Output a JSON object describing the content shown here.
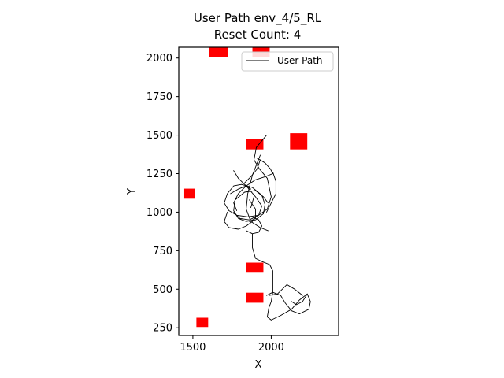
{
  "chart_data": {
    "type": "line",
    "title": "User Path env_4/5_RL",
    "subtitle": "Reset Count: 4",
    "xlabel": "X",
    "ylabel": "Y",
    "xlim": [
      1410,
      2430
    ],
    "ylim": [
      200,
      2070
    ],
    "x_ticks": [
      {
        "value": 1500,
        "label": "1500"
      },
      {
        "value": 2000,
        "label": "2000"
      }
    ],
    "y_ticks": [
      {
        "value": 250,
        "label": "250"
      },
      {
        "value": 500,
        "label": "500"
      },
      {
        "value": 750,
        "label": "750"
      },
      {
        "value": 1000,
        "label": "1000"
      },
      {
        "value": 1250,
        "label": "1250"
      },
      {
        "value": 1500,
        "label": "1500"
      },
      {
        "value": 1750,
        "label": "1750"
      },
      {
        "value": 2000,
        "label": "2000"
      }
    ],
    "grid": false,
    "legend": {
      "placement": "top-right",
      "entries": [
        "User Path"
      ]
    },
    "obstacle_color": "#ff0000",
    "line_color": "#000000",
    "obstacles": [
      {
        "cx": 1665,
        "cy": 2045,
        "w": 120,
        "h": 75
      },
      {
        "cx": 1935,
        "cy": 2045,
        "w": 110,
        "h": 75
      },
      {
        "cx": 1895,
        "cy": 1440,
        "w": 110,
        "h": 65
      },
      {
        "cx": 2175,
        "cy": 1460,
        "w": 110,
        "h": 105
      },
      {
        "cx": 1480,
        "cy": 1120,
        "w": 70,
        "h": 65
      },
      {
        "cx": 1895,
        "cy": 640,
        "w": 110,
        "h": 65
      },
      {
        "cx": 1895,
        "cy": 445,
        "w": 110,
        "h": 65
      },
      {
        "cx": 1560,
        "cy": 285,
        "w": 75,
        "h": 60
      }
    ],
    "series": [
      {
        "name": "User Path",
        "paths": [
          [
            [
              1970,
              1500
            ],
            [
              1905,
              1420
            ],
            [
              1890,
              1340
            ],
            [
              1925,
              1280
            ],
            [
              1975,
              1220
            ],
            [
              2000,
              1100
            ],
            [
              1975,
              1020
            ],
            [
              1920,
              980
            ],
            [
              1850,
              970
            ],
            [
              1780,
              980
            ],
            [
              1730,
              1010
            ],
            [
              1700,
              1060
            ],
            [
              1720,
              1120
            ],
            [
              1760,
              1170
            ],
            [
              1810,
              1180
            ],
            [
              1880,
              1160
            ],
            [
              1940,
              1110
            ],
            [
              1960,
              1050
            ],
            [
              1950,
              990
            ],
            [
              1900,
              950
            ],
            [
              1840,
              940
            ],
            [
              1790,
              960
            ],
            [
              1760,
              1010
            ],
            [
              1770,
              1080
            ],
            [
              1830,
              1130
            ],
            [
              1900,
              1140
            ],
            [
              1950,
              1100
            ],
            [
              1980,
              1060
            ]
          ],
          [
            [
              1930,
              1370
            ],
            [
              1880,
              1240
            ],
            [
              1850,
              1120
            ],
            [
              1840,
              1020
            ],
            [
              1870,
              940
            ],
            [
              1930,
              900
            ],
            [
              1980,
              880
            ]
          ],
          [
            [
              1910,
              1350
            ],
            [
              1960,
              1320
            ],
            [
              1995,
              1280
            ],
            [
              2010,
              1250
            ],
            [
              1960,
              1230
            ],
            [
              1900,
              1210
            ],
            [
              1840,
              1170
            ],
            [
              1790,
              1120
            ],
            [
              1760,
              1060
            ],
            [
              1780,
              1010
            ]
          ],
          [
            [
              1760,
              1270
            ],
            [
              1790,
              1220
            ],
            [
              1840,
              1170
            ],
            [
              1900,
              1100
            ],
            [
              1940,
              1040
            ],
            [
              1920,
              980
            ],
            [
              1860,
              950
            ],
            [
              1800,
              960
            ],
            [
              1760,
              1000
            ]
          ],
          [
            [
              1720,
              1000
            ],
            [
              1700,
              940
            ],
            [
              1730,
              900
            ],
            [
              1790,
              890
            ],
            [
              1840,
              910
            ],
            [
              1880,
              940
            ]
          ],
          [
            [
              1840,
              880
            ],
            [
              1880,
              860
            ],
            [
              1920,
              870
            ],
            [
              1940,
              910
            ],
            [
              1920,
              950
            ],
            [
              1880,
              970
            ]
          ],
          [
            [
              1860,
              1080
            ],
            [
              1900,
              1020
            ],
            [
              1900,
              960
            ],
            [
              1860,
              940
            ]
          ],
          [
            [
              1890,
              1170
            ],
            [
              1890,
              1100
            ],
            [
              1870,
              1030
            ]
          ],
          [
            [
              1970,
              1000
            ],
            [
              2000,
              1060
            ],
            [
              2030,
              1120
            ],
            [
              2030,
              1200
            ],
            [
              2010,
              1260
            ]
          ],
          [
            [
              1830,
              1190
            ],
            [
              1870,
              1230
            ],
            [
              1910,
              1280
            ],
            [
              1930,
              1340
            ]
          ],
          [
            [
              1740,
              1120
            ],
            [
              1790,
              1150
            ],
            [
              1840,
              1170
            ],
            [
              1870,
              1150
            ]
          ],
          [
            [
              1880,
              860
            ],
            [
              1880,
              770
            ],
            [
              1900,
              700
            ],
            [
              1940,
              680
            ],
            [
              1990,
              660
            ],
            [
              2010,
              620
            ],
            [
              2010,
              560
            ],
            [
              2010,
              480
            ],
            [
              2000,
              420
            ],
            [
              1985,
              380
            ],
            [
              1975,
              320
            ],
            [
              2000,
              300
            ],
            [
              2060,
              330
            ],
            [
              2130,
              370
            ],
            [
              2180,
              430
            ],
            [
              2230,
              470
            ],
            [
              2250,
              420
            ],
            [
              2240,
              370
            ],
            [
              2180,
              340
            ],
            [
              2130,
              360
            ],
            [
              2090,
              410
            ],
            [
              2060,
              460
            ],
            [
              2010,
              480
            ],
            [
              1970,
              460
            ]
          ],
          [
            [
              2130,
              420
            ],
            [
              2160,
              400
            ],
            [
              2200,
              420
            ],
            [
              2230,
              470
            ]
          ],
          [
            [
              1990,
              460
            ],
            [
              2040,
              470
            ],
            [
              2070,
              500
            ],
            [
              2100,
              530
            ],
            [
              2150,
              500
            ],
            [
              2200,
              460
            ]
          ]
        ]
      }
    ]
  }
}
